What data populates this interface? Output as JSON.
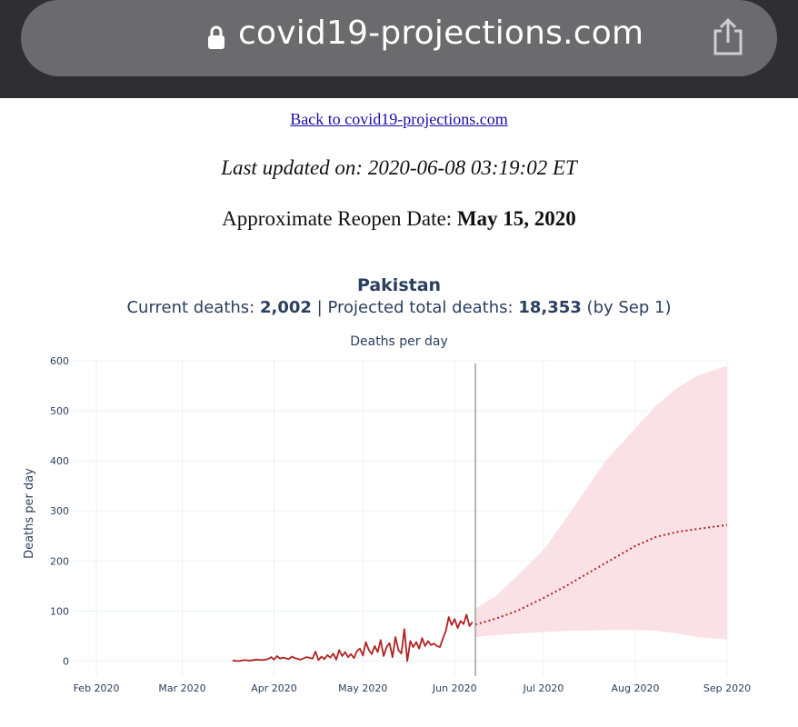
{
  "browser": {
    "url": "covid19-projections.com",
    "lock_icon": "lock-icon",
    "share_icon": "share-icon"
  },
  "page": {
    "back_link": "Back to covid19-projections.com",
    "last_updated": "Last updated on: 2020-06-08 03:19:02 ET",
    "reopen_label": "Approximate Reopen Date:",
    "reopen_date": "May 15, 2020"
  },
  "chart_header": {
    "country": "Pakistan",
    "current_label": "Current deaths:",
    "current_value": "2,002",
    "separator": "|",
    "projected_label": "Projected total deaths:",
    "projected_value": "18,353",
    "projected_suffix": "(by Sep 1)"
  },
  "chart_data": {
    "type": "line",
    "title": "Deaths per day",
    "ylabel": "Deaths per day",
    "xlabel": "",
    "x_ticks": [
      "Feb 2020",
      "Mar 2020",
      "Apr 2020",
      "May 2020",
      "Jun 2020",
      "Jul 2020",
      "Aug 2020",
      "Sep 2020"
    ],
    "y_ticks": [
      0,
      100,
      200,
      300,
      400,
      500,
      600
    ],
    "xlim": [
      "2020-01-24",
      "2020-09-01"
    ],
    "ylim": [
      -30,
      600
    ],
    "grid": true,
    "today": "2020-06-08",
    "colors": {
      "actual": "#b22222",
      "projection": "#b22222",
      "band": "#f9e1e6",
      "today_line": "#9e9e9e",
      "grid": "#ebf0f8"
    },
    "series": [
      {
        "style": "solid",
        "x": [
          "2020-03-18",
          "2020-03-20",
          "2020-03-22",
          "2020-03-24",
          "2020-03-26",
          "2020-03-28",
          "2020-03-30",
          "2020-03-31",
          "2020-04-01",
          "2020-04-02",
          "2020-04-03",
          "2020-04-04",
          "2020-04-06",
          "2020-04-07",
          "2020-04-08",
          "2020-04-10",
          "2020-04-12",
          "2020-04-14",
          "2020-04-15",
          "2020-04-16",
          "2020-04-17",
          "2020-04-18",
          "2020-04-19",
          "2020-04-20",
          "2020-04-21",
          "2020-04-22",
          "2020-04-23",
          "2020-04-24",
          "2020-04-25",
          "2020-04-26",
          "2020-04-27",
          "2020-04-28",
          "2020-04-29",
          "2020-04-30",
          "2020-05-01",
          "2020-05-02",
          "2020-05-03",
          "2020-05-04",
          "2020-05-05",
          "2020-05-06",
          "2020-05-07",
          "2020-05-08",
          "2020-05-09",
          "2020-05-10",
          "2020-05-11",
          "2020-05-12",
          "2020-05-13",
          "2020-05-14",
          "2020-05-15",
          "2020-05-16",
          "2020-05-17",
          "2020-05-18",
          "2020-05-19",
          "2020-05-20",
          "2020-05-21",
          "2020-05-22",
          "2020-05-23",
          "2020-05-24",
          "2020-05-25",
          "2020-05-26",
          "2020-05-27",
          "2020-05-28",
          "2020-05-29",
          "2020-05-30",
          "2020-05-31",
          "2020-06-01",
          "2020-06-02",
          "2020-06-03",
          "2020-06-04",
          "2020-06-05",
          "2020-06-06",
          "2020-06-07"
        ],
        "y": [
          1,
          0,
          2,
          1,
          3,
          2,
          4,
          8,
          3,
          10,
          5,
          7,
          4,
          9,
          6,
          3,
          8,
          5,
          19,
          2,
          9,
          4,
          12,
          7,
          15,
          3,
          22,
          10,
          18,
          8,
          14,
          6,
          20,
          25,
          11,
          38,
          22,
          14,
          30,
          18,
          42,
          10,
          28,
          36,
          8,
          48,
          22,
          15,
          64,
          0,
          40,
          28,
          38,
          25,
          46,
          30,
          40,
          32,
          35,
          30,
          28,
          45,
          60,
          88,
          72,
          84,
          66,
          80,
          74,
          93,
          70,
          78
        ]
      },
      {
        "style": "dotted",
        "x": [
          "2020-06-08",
          "2020-06-15",
          "2020-06-22",
          "2020-07-01",
          "2020-07-08",
          "2020-07-15",
          "2020-07-22",
          "2020-08-01",
          "2020-08-08",
          "2020-08-15",
          "2020-08-22",
          "2020-09-01"
        ],
        "y": [
          73,
          85,
          100,
          126,
          148,
          172,
          196,
          230,
          248,
          258,
          264,
          272
        ]
      },
      {
        "style": "band",
        "x": [
          "2020-06-08",
          "2020-06-15",
          "2020-06-22",
          "2020-07-01",
          "2020-07-08",
          "2020-07-15",
          "2020-07-22",
          "2020-08-01",
          "2020-08-08",
          "2020-08-15",
          "2020-08-22",
          "2020-09-01"
        ],
        "lower": [
          48,
          52,
          55,
          58,
          60,
          61,
          62,
          62,
          61,
          55,
          48,
          43
        ],
        "upper": [
          105,
          130,
          170,
          222,
          280,
          340,
          400,
          465,
          510,
          545,
          570,
          590
        ]
      }
    ]
  }
}
